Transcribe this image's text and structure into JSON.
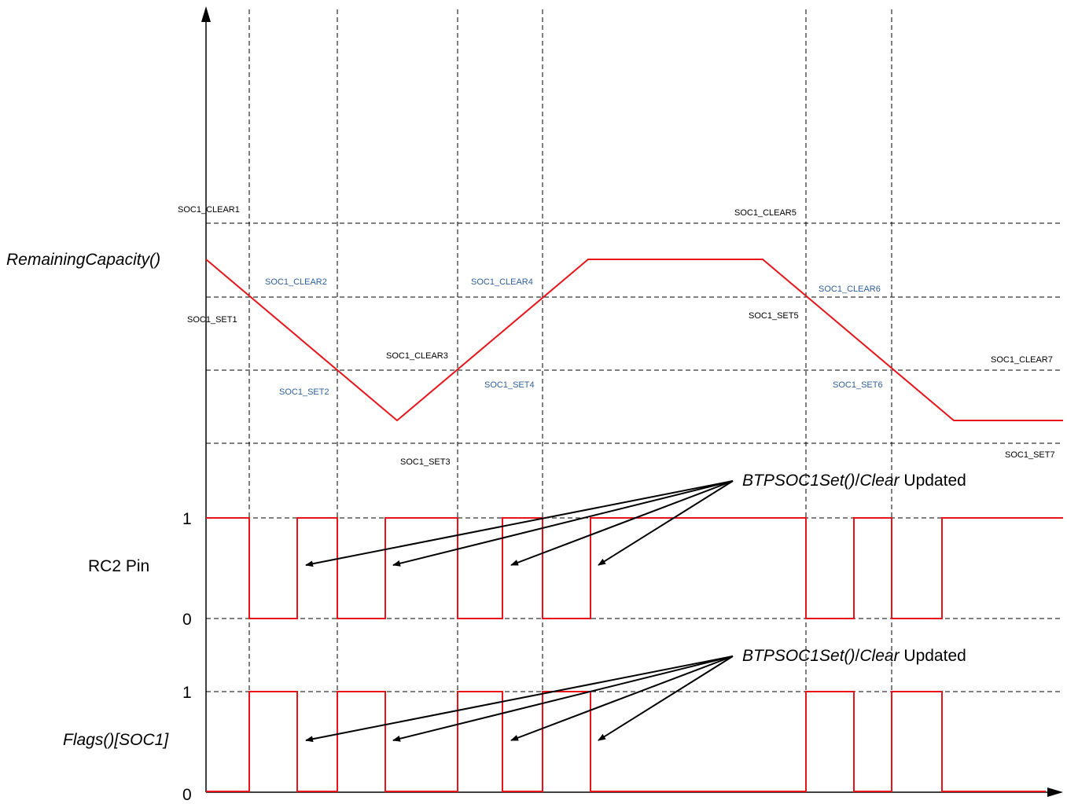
{
  "colors": {
    "signal": "#e8141a",
    "guide": "#000000",
    "blue_label": "#2e5f9e",
    "black_label": "#000000"
  },
  "axis_labels": {
    "remaining": "RemainingCapacity()",
    "rc2": "RC2 Pin",
    "flags": "Flags()[SOC1]",
    "rc2_high": "1",
    "rc2_low": "0",
    "flags_high": "1",
    "flags_low": "0"
  },
  "annotations": {
    "rc2_note_italic1": "BTPSOC1Set()",
    "rc2_note_sep": "/",
    "rc2_note_italic2": "Clear",
    "rc2_note_rest": " Updated",
    "flags_note_italic1": "BTPSOC1Set()",
    "flags_note_sep": "/",
    "flags_note_italic2": "Clear",
    "flags_note_rest": " Updated"
  },
  "threshold_labels": {
    "clear1": "SOC1_CLEAR1",
    "clear2": "SOC1_CLEAR2",
    "clear3": "SOC1_CLEAR3",
    "clear4": "SOC1_CLEAR4",
    "clear5": "SOC1_CLEAR5",
    "clear6": "SOC1_CLEAR6",
    "clear7": "SOC1_CLEAR7",
    "set1": "SOC1_SET1",
    "set2": "SOC1_SET2",
    "set3": "SOC1_SET3",
    "set4": "SOC1_SET4",
    "set5": "SOC1_SET5",
    "set6": "SOC1_SET6",
    "set7": "SOC1_SET7"
  }
}
